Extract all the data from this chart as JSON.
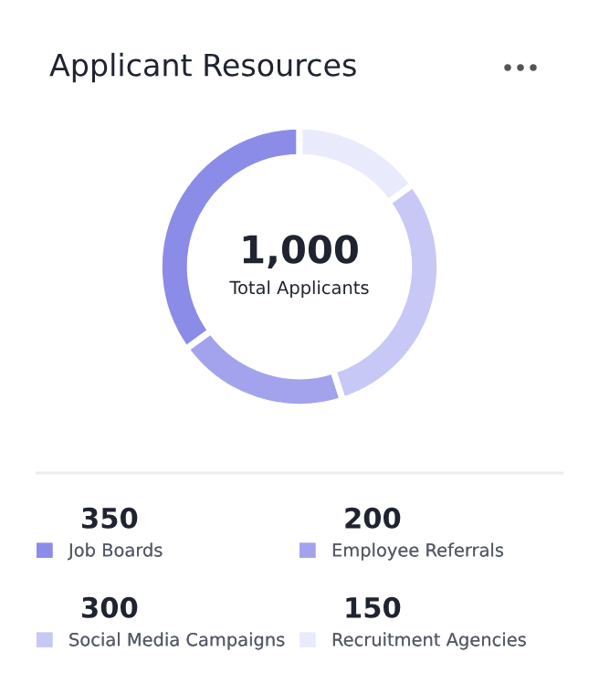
{
  "chart_data": {
    "type": "donut",
    "title": "Applicant Resources",
    "categories": [
      "Job Boards",
      "Employee Referrals",
      "Social Media Campaigns",
      "Recruitment Agencies"
    ],
    "values": [
      350,
      200,
      300,
      150
    ],
    "value_labels": [
      "350",
      "200",
      "300",
      "150"
    ],
    "colors": [
      "#8b8ce8",
      "#a2a3ec",
      "#c7c8f5",
      "#e9eafc"
    ],
    "annotations": [
      "1,000",
      "Total Applicants"
    ],
    "legend": "bottom"
  }
}
